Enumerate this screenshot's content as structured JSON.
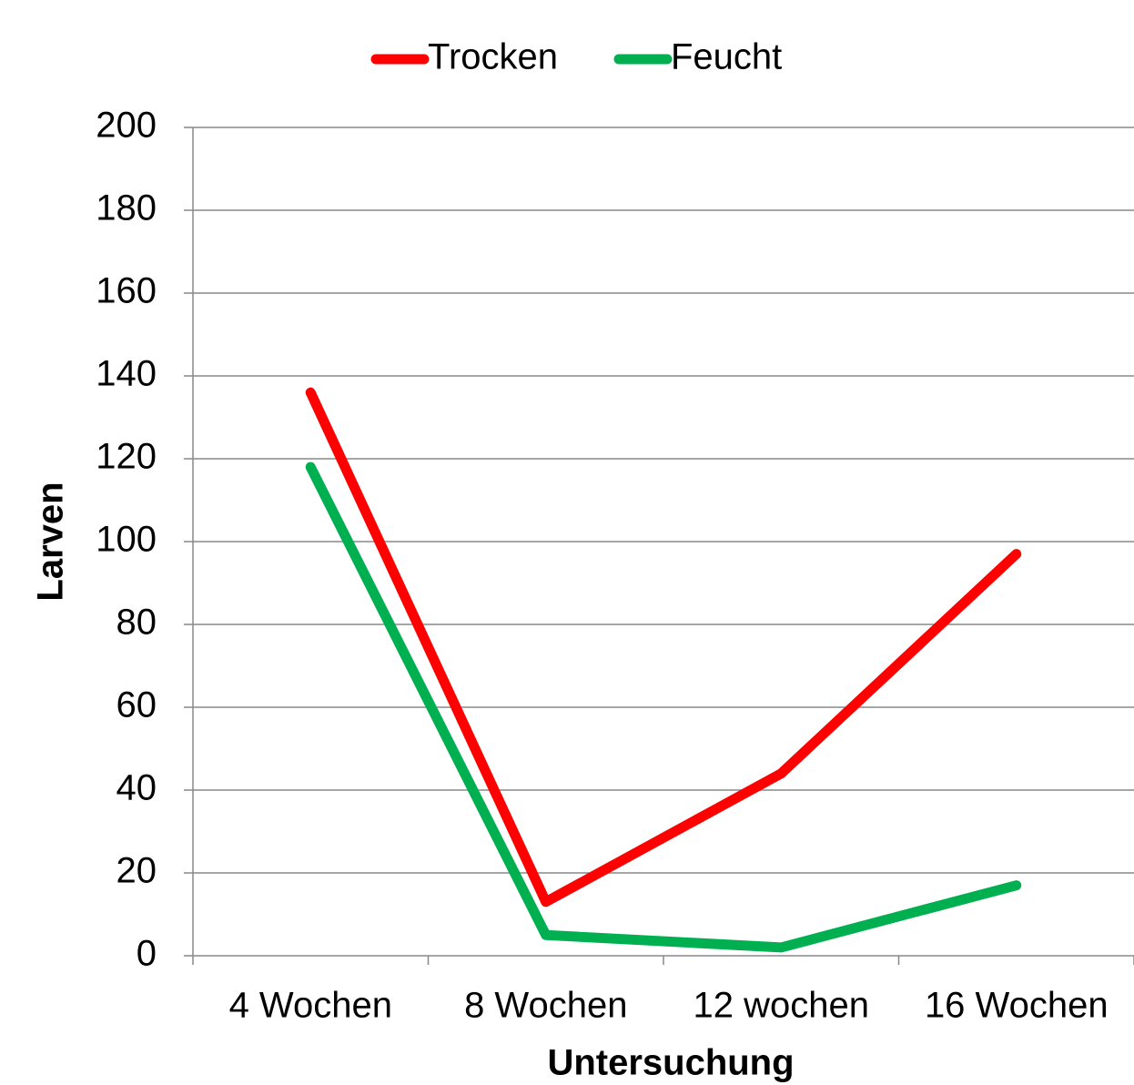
{
  "chart_data": {
    "type": "line",
    "categories": [
      "4 Wochen",
      "8 Wochen",
      "12 wochen",
      "16 Wochen"
    ],
    "series": [
      {
        "name": "Trocken",
        "color": "#ff0000",
        "values": [
          136,
          13,
          44,
          97
        ]
      },
      {
        "name": "Feucht",
        "color": "#00b050",
        "values": [
          118,
          5,
          2,
          17
        ]
      }
    ],
    "xlabel": "Untersuchung",
    "ylabel": "Larven",
    "ylim": [
      0,
      200
    ],
    "yticks": [
      0,
      20,
      40,
      60,
      80,
      100,
      120,
      140,
      160,
      180,
      200
    ],
    "grid": true,
    "legend": "top"
  }
}
